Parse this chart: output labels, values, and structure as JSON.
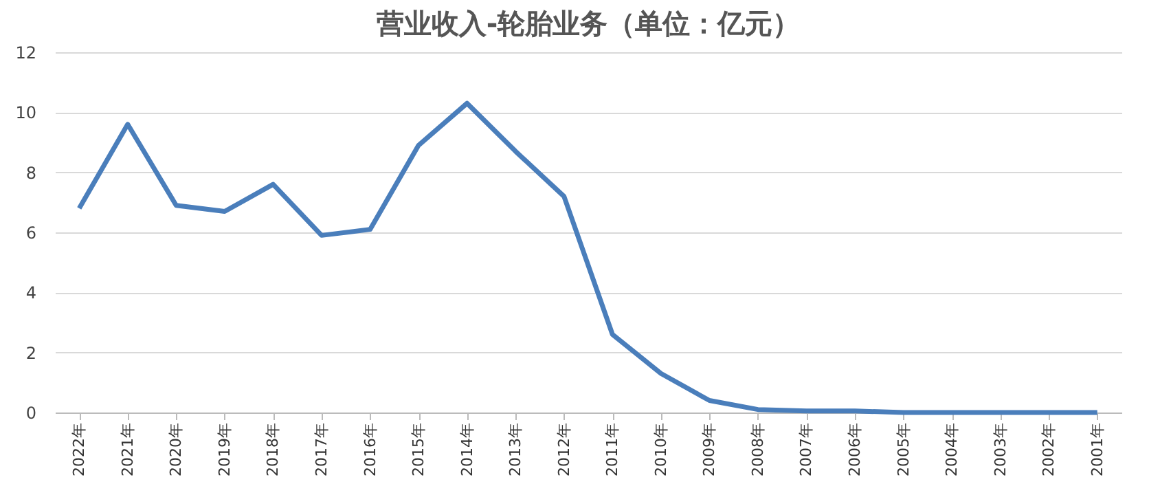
{
  "chart_data": {
    "type": "line",
    "title": "营业收入-轮胎业务（单位：亿元）",
    "categories": [
      "2022年",
      "2021年",
      "2020年",
      "2019年",
      "2018年",
      "2017年",
      "2016年",
      "2015年",
      "2014年",
      "2013年",
      "2012年",
      "2011年",
      "2010年",
      "2009年",
      "2008年",
      "2007年",
      "2006年",
      "2005年",
      "2004年",
      "2003年",
      "2002年",
      "2001年"
    ],
    "series": [
      {
        "color": "#4a7ebb",
        "values": [
          6.8,
          9.6,
          6.9,
          6.7,
          7.6,
          5.9,
          6.1,
          8.9,
          10.3,
          8.7,
          7.2,
          2.6,
          1.3,
          0.4,
          0.1,
          0.05,
          0.05,
          0,
          0,
          0,
          0,
          0
        ]
      }
    ],
    "ylim": [
      0,
      12
    ],
    "yticks": [
      0,
      2,
      4,
      6,
      8,
      10,
      12
    ],
    "grid": "y",
    "marker": "none",
    "line_style": "solid"
  }
}
